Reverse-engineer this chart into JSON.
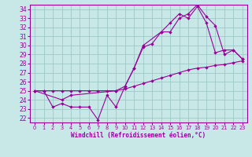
{
  "xlabel": "Windchill (Refroidissement éolien,°C)",
  "xlim": [
    -0.5,
    23.5
  ],
  "ylim": [
    21.5,
    34.5
  ],
  "xticks": [
    0,
    1,
    2,
    3,
    4,
    5,
    6,
    7,
    8,
    9,
    10,
    11,
    12,
    13,
    14,
    15,
    16,
    17,
    18,
    19,
    20,
    21,
    22,
    23
  ],
  "yticks": [
    22,
    23,
    24,
    25,
    26,
    27,
    28,
    29,
    30,
    31,
    32,
    33,
    34
  ],
  "bg_color": "#c8e8e8",
  "grid_color": "#a0c8c8",
  "line_color": "#990099",
  "line1_x": [
    0,
    1,
    2,
    3,
    4,
    5,
    6,
    7,
    8,
    9,
    10,
    11,
    12,
    13,
    14,
    15,
    16,
    17,
    18,
    19,
    20,
    21,
    22,
    23
  ],
  "line1_y": [
    25.0,
    25.0,
    25.0,
    25.0,
    25.0,
    25.0,
    25.0,
    25.0,
    25.0,
    25.0,
    25.2,
    25.5,
    25.8,
    26.1,
    26.4,
    26.7,
    27.0,
    27.3,
    27.5,
    27.6,
    27.8,
    27.9,
    28.1,
    28.3
  ],
  "line2_x": [
    0,
    1,
    2,
    3,
    4,
    5,
    6,
    7,
    8,
    9,
    10,
    11,
    12,
    13,
    14,
    15,
    16,
    17,
    18,
    19,
    20,
    21,
    22,
    23
  ],
  "line2_y": [
    25.0,
    25.0,
    23.2,
    23.6,
    23.2,
    23.2,
    23.2,
    21.8,
    24.5,
    23.2,
    25.5,
    27.5,
    29.8,
    30.2,
    31.5,
    32.5,
    33.5,
    33.0,
    34.3,
    32.5,
    29.2,
    29.5,
    29.5,
    28.5
  ],
  "line3_x": [
    0,
    3,
    4,
    9,
    10,
    11,
    12,
    14,
    15,
    16,
    17,
    18,
    19,
    20,
    21,
    22,
    23
  ],
  "line3_y": [
    25.0,
    24.0,
    24.5,
    25.0,
    25.5,
    27.5,
    30.0,
    31.5,
    31.5,
    33.0,
    33.5,
    34.5,
    33.2,
    32.2,
    29.0,
    29.5,
    28.5
  ]
}
